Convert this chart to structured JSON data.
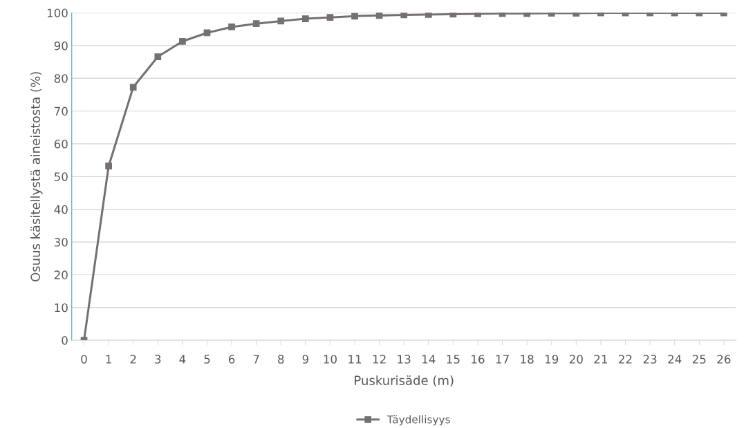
{
  "chart_data": {
    "type": "line",
    "xlabel": "Puskurisäde (m)",
    "ylabel": "Osuus käsitellystä aineistosta (%)",
    "categories": [
      "0",
      "1",
      "2",
      "3",
      "4",
      "5",
      "6",
      "7",
      "8",
      "9",
      "10",
      "11",
      "12",
      "13",
      "14",
      "15",
      "16",
      "17",
      "18",
      "19",
      "20",
      "21",
      "22",
      "23",
      "24",
      "25",
      "26"
    ],
    "series": [
      {
        "name": "Täydellisyys",
        "color": "#767171",
        "values": [
          0,
          53.2,
          77.3,
          86.6,
          91.3,
          93.9,
          95.7,
          96.7,
          97.5,
          98.2,
          98.6,
          99.0,
          99.2,
          99.4,
          99.5,
          99.6,
          99.7,
          99.8,
          99.8,
          99.9,
          99.9,
          100,
          100,
          100,
          100,
          100,
          100
        ]
      }
    ],
    "ylim": [
      0,
      100
    ],
    "yticks": [
      0,
      10,
      20,
      30,
      40,
      50,
      60,
      70,
      80,
      90,
      100
    ],
    "grid": "y",
    "legend": "bottom",
    "marker": "square",
    "line_style": "solid"
  }
}
